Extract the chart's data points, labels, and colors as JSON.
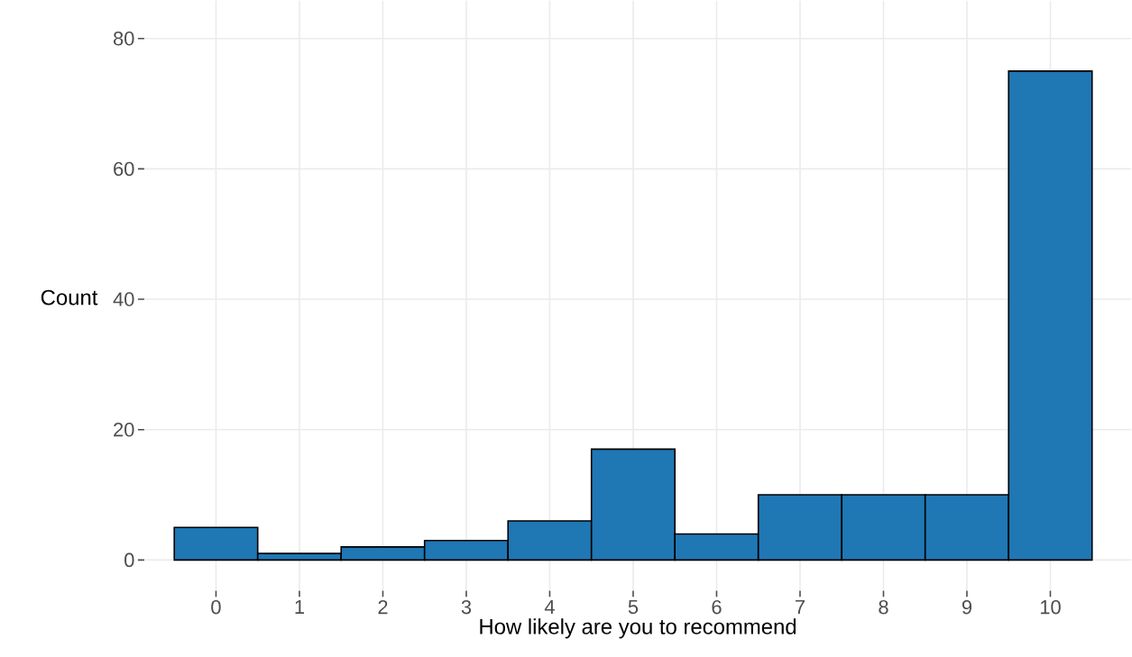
{
  "chart_data": {
    "type": "histogram",
    "xlabel": "How likely are you to recommend",
    "ylabel": "Count",
    "bins": [
      -0.5,
      0.5,
      1.5,
      2.5,
      3.5,
      4.5,
      5.5,
      6.5,
      7.5,
      8.5,
      9.5,
      10.5
    ],
    "values": [
      5,
      1,
      2,
      3,
      6,
      17,
      4,
      10,
      10,
      10,
      75
    ],
    "color": "#1f77b4",
    "xlim": [
      -0.86,
      10.97
    ],
    "ylim": [
      -4.7,
      85.8
    ],
    "xticks": [
      0,
      1,
      2,
      3,
      4,
      5,
      6,
      7,
      8,
      9,
      10
    ],
    "yticks": [
      0,
      20,
      40,
      60,
      80
    ],
    "grid": true
  }
}
